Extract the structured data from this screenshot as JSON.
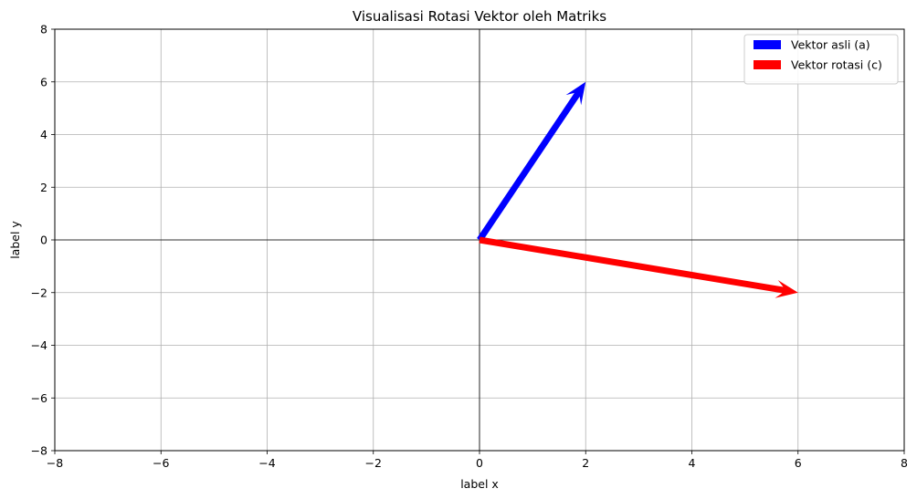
{
  "chart_data": {
    "type": "quiver",
    "title": "Visualisasi Rotasi Vektor oleh Matriks",
    "xlabel": "label x",
    "ylabel": "label y",
    "xlim": [
      -8,
      8
    ],
    "ylim": [
      -8,
      8
    ],
    "xticks": [
      -8,
      -6,
      -4,
      -2,
      0,
      2,
      4,
      6,
      8
    ],
    "yticks": [
      -8,
      -6,
      -4,
      -2,
      0,
      2,
      4,
      6,
      8
    ],
    "grid": true,
    "zero_lines": true,
    "legend_position": "top-right",
    "series": [
      {
        "name": "Vektor asli (a)",
        "start": [
          0,
          0
        ],
        "end": [
          2,
          6
        ],
        "color": "#0000ff"
      },
      {
        "name": "Vektor rotasi (c)",
        "start": [
          0,
          0
        ],
        "end": [
          6,
          -2
        ],
        "color": "#ff0000"
      }
    ]
  }
}
